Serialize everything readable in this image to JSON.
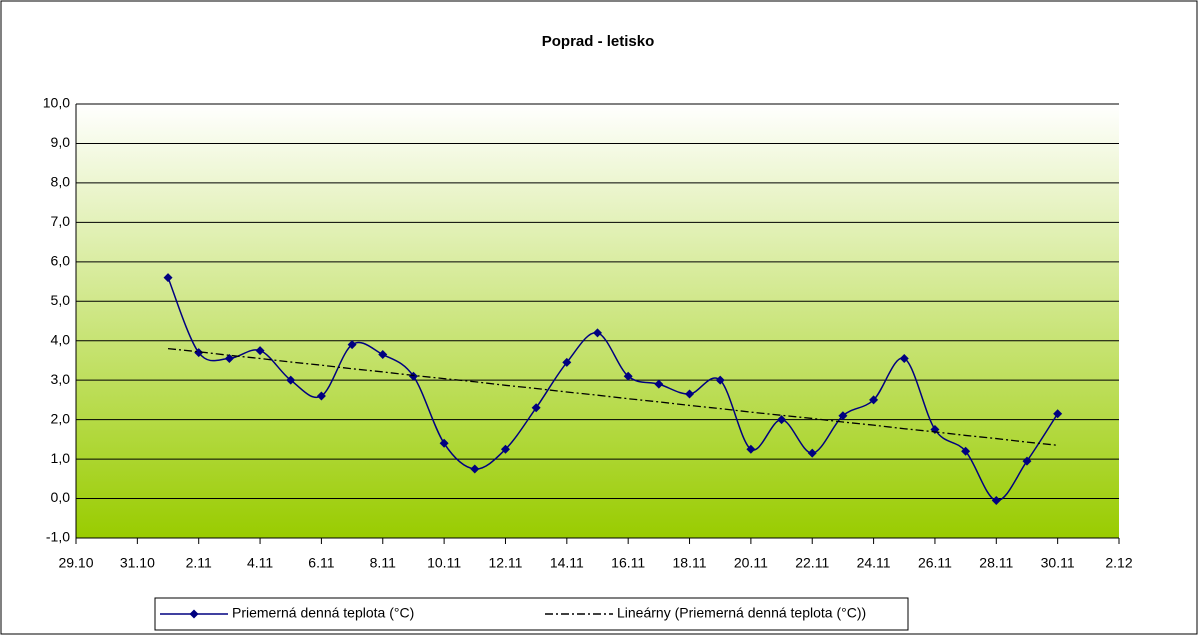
{
  "chart_data": {
    "type": "line",
    "title": "Poprad - letisko",
    "categories": [
      "29.10",
      null,
      "31.10",
      null,
      "2.11",
      null,
      "4.11",
      null,
      "6.11",
      null,
      "8.11",
      null,
      "10.11",
      null,
      "12.11",
      null,
      "14.11",
      null,
      "16.11",
      null,
      "18.11",
      null,
      "20.11",
      null,
      "22.11",
      null,
      "24.11",
      null,
      "26.11",
      null,
      "28.11",
      null,
      "30.11",
      null,
      "2.12"
    ],
    "series": [
      {
        "name": "Priemerná denná teplota (°C)",
        "color": "#000080",
        "smooth": true,
        "marker": "diamond",
        "values": [
          null,
          null,
          null,
          5.6,
          3.7,
          3.55,
          3.75,
          3.0,
          2.6,
          3.9,
          3.65,
          3.1,
          1.4,
          0.75,
          1.25,
          2.3,
          3.45,
          4.2,
          3.1,
          2.9,
          2.65,
          3.0,
          1.25,
          2.0,
          1.15,
          2.1,
          2.5,
          3.55,
          1.75,
          1.2,
          -0.05,
          0.95,
          2.15,
          null,
          null
        ]
      },
      {
        "name": "Lineárny (Priemerná denná teplota (°C))",
        "color": "#000000",
        "dash": "8 3 2 3",
        "values": [
          null,
          null,
          null,
          3.8,
          3.72,
          3.63,
          3.55,
          3.46,
          3.38,
          3.29,
          3.21,
          3.12,
          3.04,
          2.96,
          2.87,
          2.79,
          2.7,
          2.62,
          2.53,
          2.45,
          2.36,
          2.28,
          2.19,
          2.11,
          2.03,
          1.94,
          1.86,
          1.77,
          1.69,
          1.6,
          1.52,
          1.43,
          1.35,
          null,
          null
        ]
      }
    ],
    "ylim": [
      -1,
      10
    ],
    "yticks": [
      {
        "value": -1,
        "label": "-1,0"
      },
      {
        "value": 0,
        "label": "0,0"
      },
      {
        "value": 1,
        "label": "1,0"
      },
      {
        "value": 2,
        "label": "2,0"
      },
      {
        "value": 3,
        "label": "3,0"
      },
      {
        "value": 4,
        "label": "4,0"
      },
      {
        "value": 5,
        "label": "5,0"
      },
      {
        "value": 6,
        "label": "6,0"
      },
      {
        "value": 7,
        "label": "7,0"
      },
      {
        "value": 8,
        "label": "8,0"
      },
      {
        "value": 9,
        "label": "9,0"
      },
      {
        "value": 10,
        "label": "10,0"
      }
    ],
    "grid": true,
    "legend": "bottom"
  }
}
